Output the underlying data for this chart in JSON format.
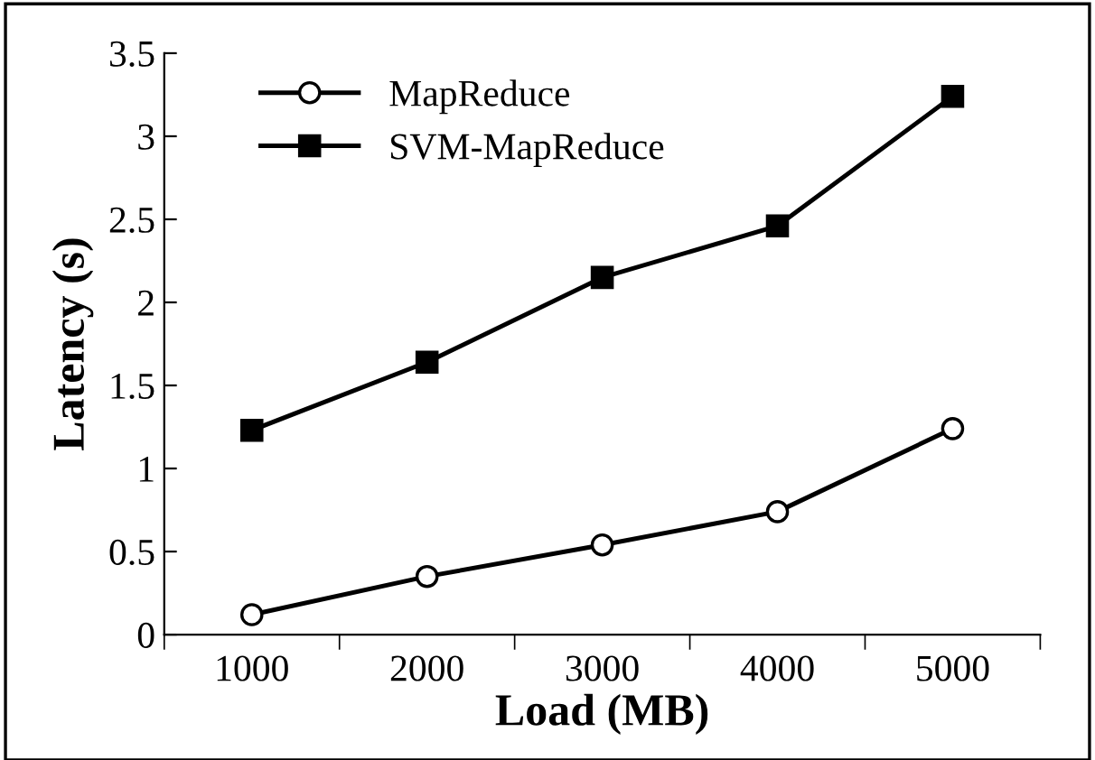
{
  "chart_data": {
    "type": "line",
    "xlabel": "Load (MB)",
    "ylabel": "Latency (s)",
    "categories": [
      "1000",
      "2000",
      "3000",
      "4000",
      "5000"
    ],
    "series": [
      {
        "name": "MapReduce",
        "color": "#000000",
        "marker": "circle",
        "values": [
          0.12,
          0.35,
          0.54,
          0.74,
          1.24
        ]
      },
      {
        "name": "SVM-MapReduce",
        "color": "#000000",
        "marker": "square",
        "values": [
          1.23,
          1.64,
          2.15,
          2.46,
          3.24
        ]
      }
    ],
    "ylim": [
      0,
      3.5
    ],
    "yticks": [
      0,
      0.5,
      1,
      1.5,
      2,
      2.5,
      3,
      3.5
    ],
    "grid": false,
    "legend": "top left",
    "line_style": "solid"
  }
}
